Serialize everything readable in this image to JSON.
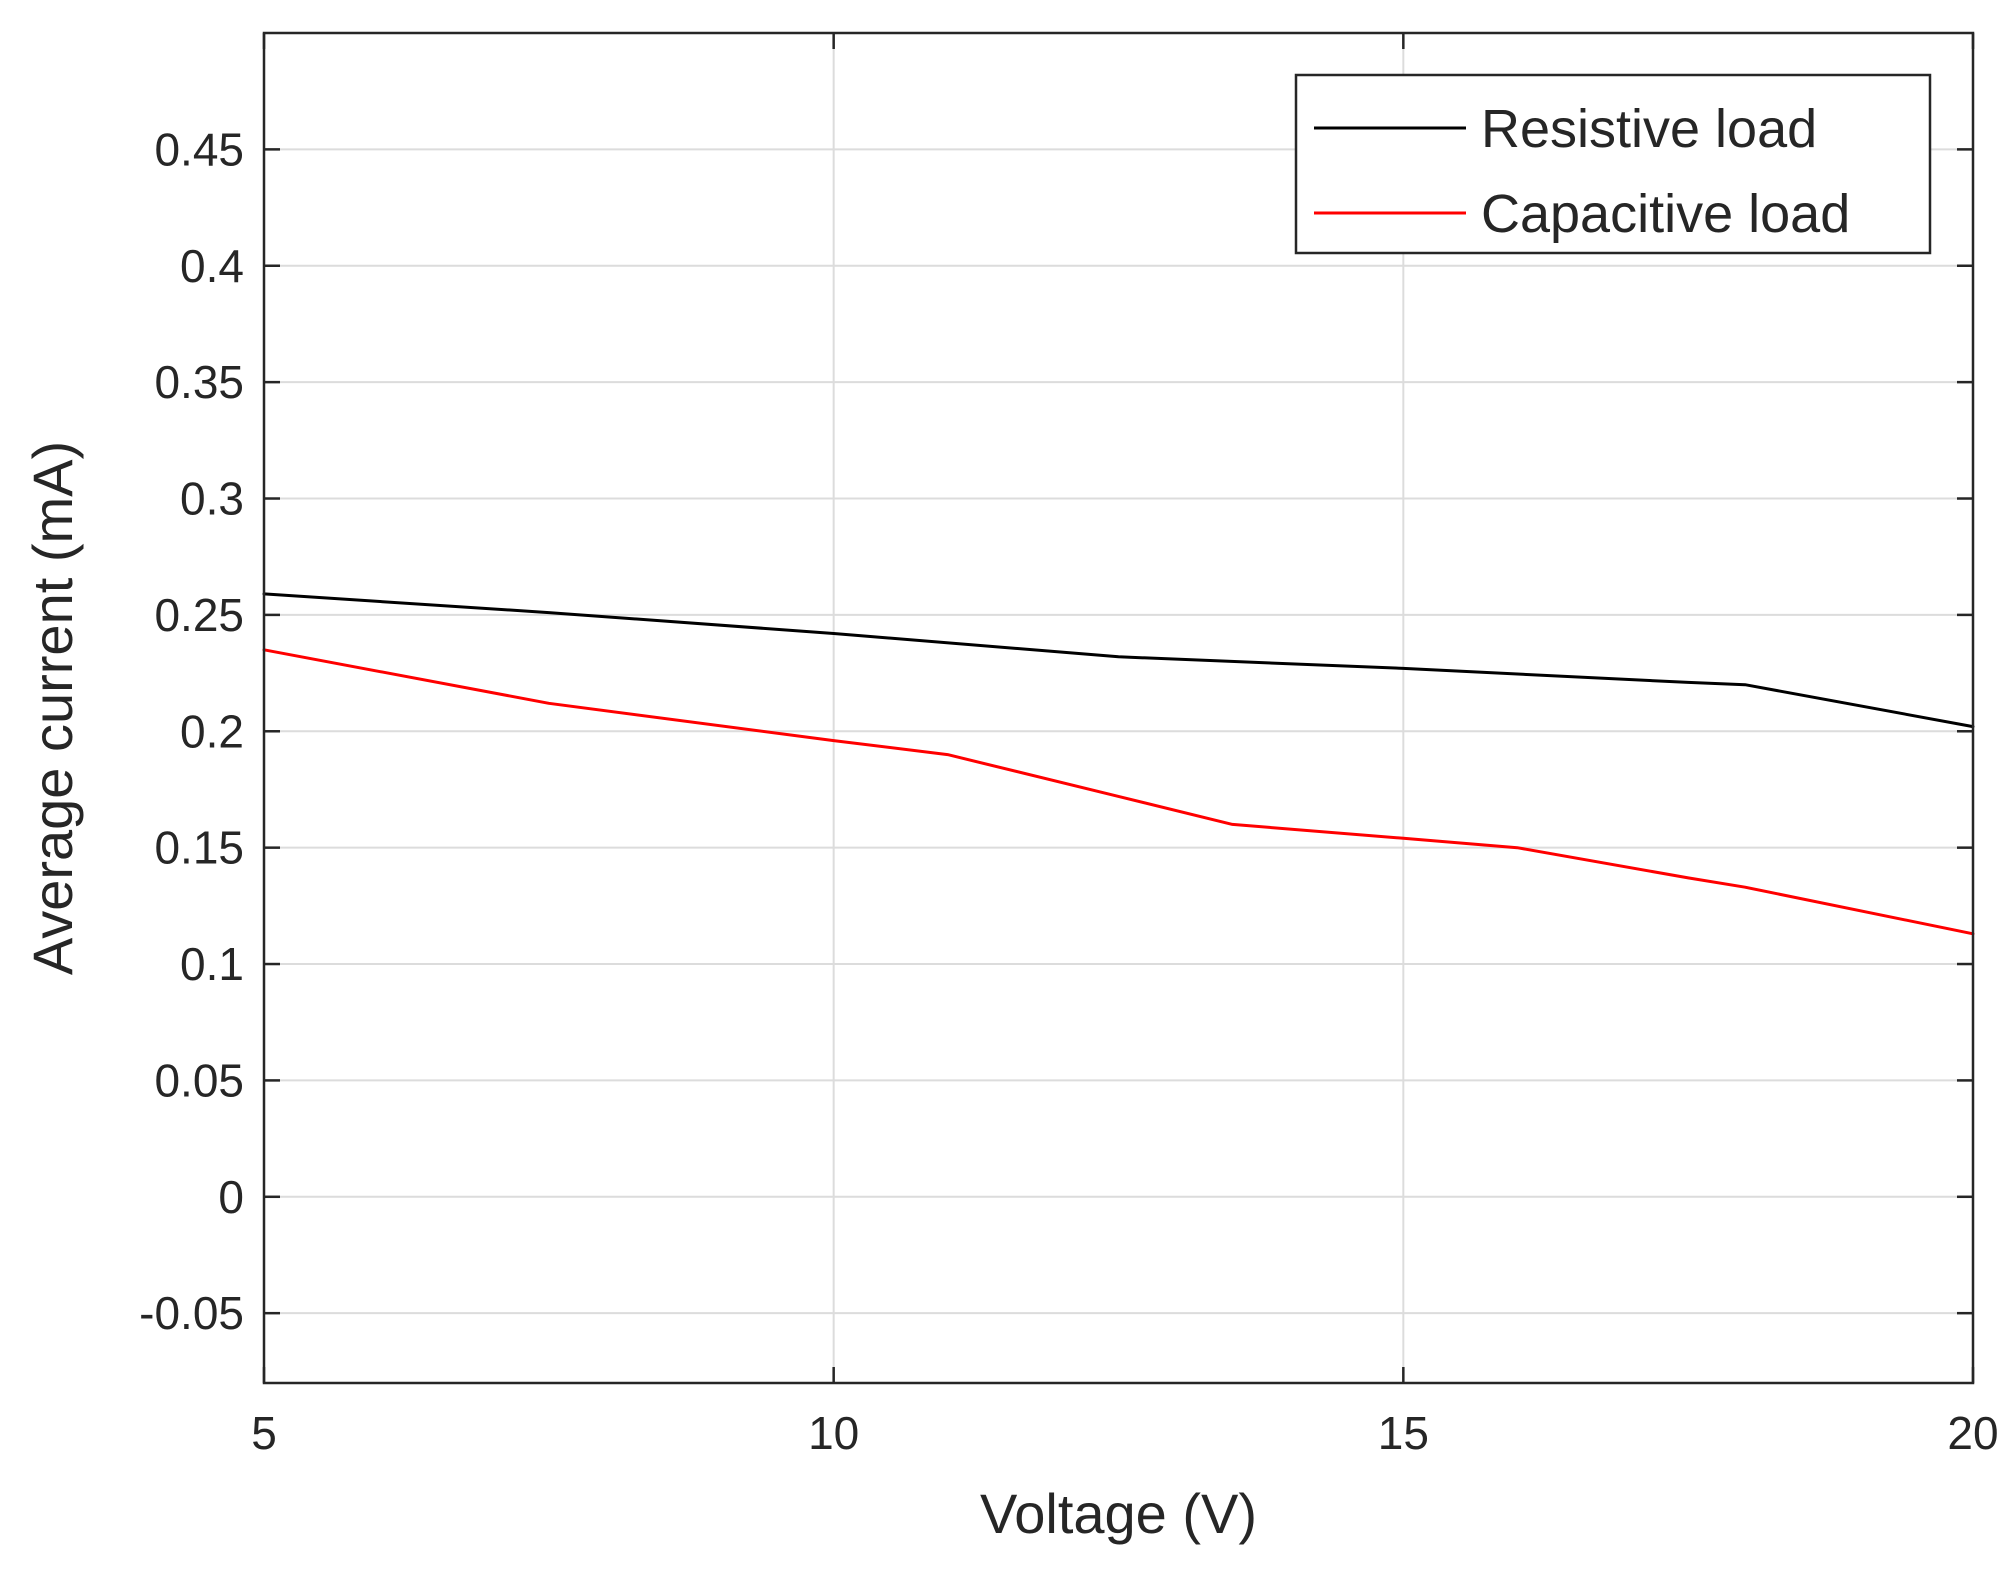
{
  "chart_data": {
    "type": "line",
    "title": "",
    "xlabel": "Voltage (V)",
    "ylabel": "Average current (mA)",
    "xlim": [
      5,
      20
    ],
    "ylim": [
      -0.08,
      0.5
    ],
    "grid": true,
    "legend_position": "top-right",
    "x_ticks": [
      5,
      10,
      15,
      20
    ],
    "x_tick_labels": [
      "5",
      "10",
      "15",
      "20"
    ],
    "y_ticks": [
      -0.05,
      0,
      0.05,
      0.1,
      0.15,
      0.2,
      0.25,
      0.3,
      0.35,
      0.4,
      0.45
    ],
    "y_tick_labels": [
      "-0.05",
      "0",
      "0.05",
      "0.1",
      "0.15",
      "0.2",
      "0.25",
      "0.3",
      "0.35",
      "0.4",
      "0.45"
    ],
    "series": [
      {
        "name": "Resistive load",
        "color": "#000000",
        "x": [
          5,
          7.5,
          10,
          12.5,
          15,
          17.5,
          18,
          20
        ],
        "y": [
          0.259,
          0.251,
          0.242,
          0.232,
          0.227,
          0.221,
          0.22,
          0.202
        ]
      },
      {
        "name": "Capacitive load",
        "color": "#ff0000",
        "x": [
          5,
          7.5,
          10,
          11,
          12.5,
          13.5,
          15,
          16,
          17.5,
          18,
          20
        ],
        "y": [
          0.235,
          0.212,
          0.196,
          0.19,
          0.172,
          0.16,
          0.154,
          0.15,
          0.137,
          0.133,
          0.113
        ]
      }
    ]
  }
}
